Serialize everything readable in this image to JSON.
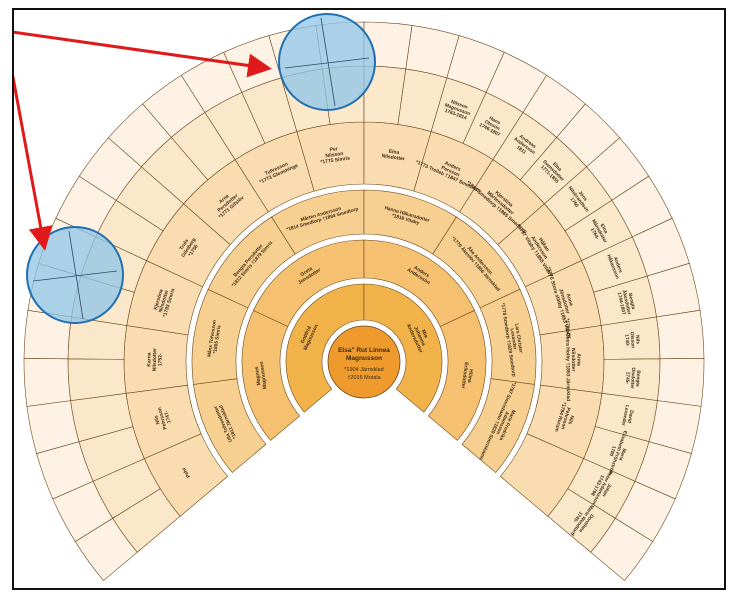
{
  "colors": {
    "ring1": "#f2b24a",
    "ring2": "#f5c070",
    "ring3": "#f7cf91",
    "ring4": "#f9dcaf",
    "ring5": "#fbe7c9",
    "ring6": "#fdf2e3",
    "center": "#ee9a2c",
    "stroke": "#6b4a1e",
    "highlight_fill": "#8ec5e8",
    "highlight_stroke": "#1f6fb2",
    "arrow": "#e01a1a"
  },
  "root": {
    "name": "Elsa\" Rut Linnea Magnusson",
    "born": "*1904 Järnsklad",
    "died": "†2016 Motala"
  },
  "parents": [
    "Gottfrid Magnusson",
    "Mia Johanna Andersdotter"
  ],
  "grandparents": [
    "Magnus Magnusson",
    "Greta Jonsdotter",
    "Anders Andersson",
    "Hilma Eriksdotter"
  ],
  "great_grandparents": [
    {
      "name": "Ulla Tofvesdotter",
      "dates": "*1811 Järnsklad"
    },
    {
      "name": "Måns Tofvesson",
      "dates": "*1805 Simris"
    },
    {
      "name": "Bengta Persdotter",
      "dates": "*1812 Simris †1879 Simris"
    },
    {
      "name": "Mårten Andersson",
      "dates": "*1814 Smedtorp †1894 Smedtorp"
    },
    {
      "name": "Hanna Håkansdotter",
      "dates": "*1818 Vitaby"
    },
    {
      "name": "Åke Andersson",
      "dates": "*1779 Åkeslöv †1856 Järnsklad"
    },
    {
      "name": "Lars Christer Lexander",
      "dates": "*1778 Smedtorp †1829 Smedtorp"
    },
    {
      "name": "Marie Fredrika Adamsson",
      "dates": "*1787 Simrishamn †1829 Simrishamn"
    }
  ],
  "outer_names": [
    {
      "name": "Pehr",
      "dates": ""
    },
    {
      "name": "Nils Pehrsson",
      "dates": "1747-"
    },
    {
      "name": "Karna Nilsdotter",
      "dates": "1752-"
    },
    {
      "name": "Kjerstina Nilsdotter",
      "dates": "*1793 Simris"
    },
    {
      "name": "Truls Gilmberg",
      "dates": "*1756"
    },
    {
      "name": "Arne Persdotter",
      "dates": "*1771 Gifslöv"
    },
    {
      "name": "Tufvesson",
      "dates": "*1773 Glemminge"
    },
    {
      "name": "Per Nilsson",
      "dates": "*1775 Simris"
    },
    {
      "name": "Elna Nilsdotter",
      "dates": ""
    },
    {
      "name": "Anders Persson",
      "dates": "*1773 Trelleb †1847 Smedtorp"
    },
    {
      "name": "Kjerstina Mårtensdotter",
      "dates": "*1783 Smedtorp †1865 Smedtorp"
    },
    {
      "name": "Håkan Andersson",
      "dates": "*1767 Vitaby †1855 Vitaby"
    },
    {
      "name": "Anna Jönsdotter",
      "dates": "*1776 Stora slätby †1853 Vitaby"
    },
    {
      "name": "Anna Nilsdotter",
      "dates": "*1782 Östra Holby †1853 Järnsklad"
    },
    {
      "name": "Nils Pehrsson",
      "dates": "*1794 Rorum"
    }
  ],
  "far_outer": [
    {
      "name": "Nilsson Magnusson",
      "dates": "1763-1814"
    },
    {
      "name": "Hans Olsson",
      "dates": "1746-1807"
    },
    {
      "name": "Andreas Andersson",
      "dates": "1811"
    },
    {
      "name": "Elna Svensdotter",
      "dates": "1771-1855"
    },
    {
      "name": "Jöns Nilsbrandson",
      "dates": "1760"
    },
    {
      "name": "Elna Månsdotter",
      "dates": "1764-"
    },
    {
      "name": "Anders Håkansson",
      "dates": ""
    },
    {
      "name": "Bengta Åkesdotter",
      "dates": "1744-1807"
    },
    {
      "name": "Nils Olsson",
      "dates": "1740-"
    },
    {
      "name": "Bengta Olsdotter",
      "dates": "1745-"
    },
    {
      "name": "David Lexander",
      "dates": ""
    },
    {
      "name": "Maria Elisabeth Fröhström",
      "dates": "1790"
    },
    {
      "name": "Johan Peter Adamsson",
      "dates": "1743-1798"
    },
    {
      "name": "Dorothea Marie Wendtorff",
      "dates": "1745-"
    }
  ]
}
